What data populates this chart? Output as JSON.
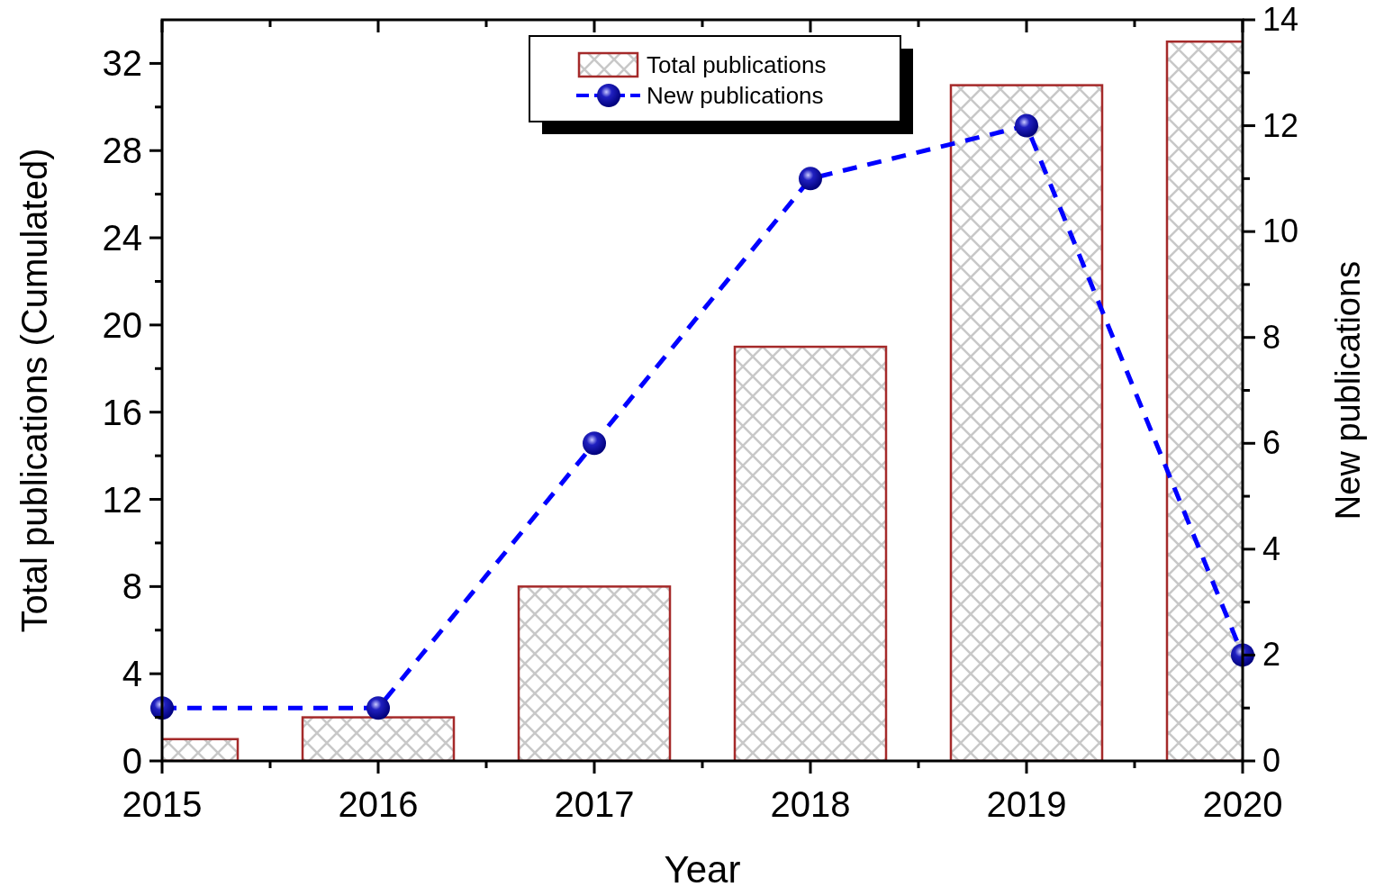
{
  "chart_data": {
    "type": "bar",
    "xlabel": "Year",
    "ylabel": "Total publications (Cumulated)",
    "y2label": "New publications",
    "x": [
      2015,
      2016,
      2017,
      2018,
      2019,
      2020
    ],
    "xlim": [
      2015,
      2020
    ],
    "xticks": [
      2015,
      {
        "value": 2015.5,
        "label": null
      },
      2016,
      {
        "value": 2016.5,
        "label": null
      },
      2017,
      {
        "value": 2017.5,
        "label": null
      },
      2018,
      {
        "value": 2018.5,
        "label": null
      },
      2019,
      {
        "value": 2019.5,
        "label": null
      },
      2020
    ],
    "ylim": [
      0,
      34
    ],
    "yticks": [
      0,
      {
        "value": 2,
        "label": null
      },
      4,
      {
        "value": 6,
        "label": null
      },
      8,
      {
        "value": 10,
        "label": null
      },
      12,
      {
        "value": 14,
        "label": null
      },
      16,
      {
        "value": 18,
        "label": null
      },
      20,
      {
        "value": 22,
        "label": null
      },
      24,
      {
        "value": 26,
        "label": null
      },
      28,
      {
        "value": 30,
        "label": null
      },
      32
    ],
    "y2lim": [
      0,
      14
    ],
    "y2ticks": [
      0,
      {
        "value": 1,
        "label": null
      },
      2,
      {
        "value": 3,
        "label": null
      },
      4,
      {
        "value": 5,
        "label": null
      },
      6,
      {
        "value": 7,
        "label": null
      },
      8,
      {
        "value": 9,
        "label": null
      },
      10,
      {
        "value": 11,
        "label": null
      },
      12,
      {
        "value": 13,
        "label": null
      },
      14
    ],
    "legend": "top",
    "marker": "circle",
    "line_style": "dashed",
    "series": [
      {
        "name": "Total publications",
        "color": "#a52a2a",
        "values": [
          1,
          2,
          8,
          19,
          31,
          33
        ]
      },
      {
        "name": "New publications",
        "type": "line",
        "axis": "y2",
        "color": "#0000ff",
        "values": [
          1,
          1,
          6,
          11,
          12,
          2
        ]
      }
    ]
  }
}
